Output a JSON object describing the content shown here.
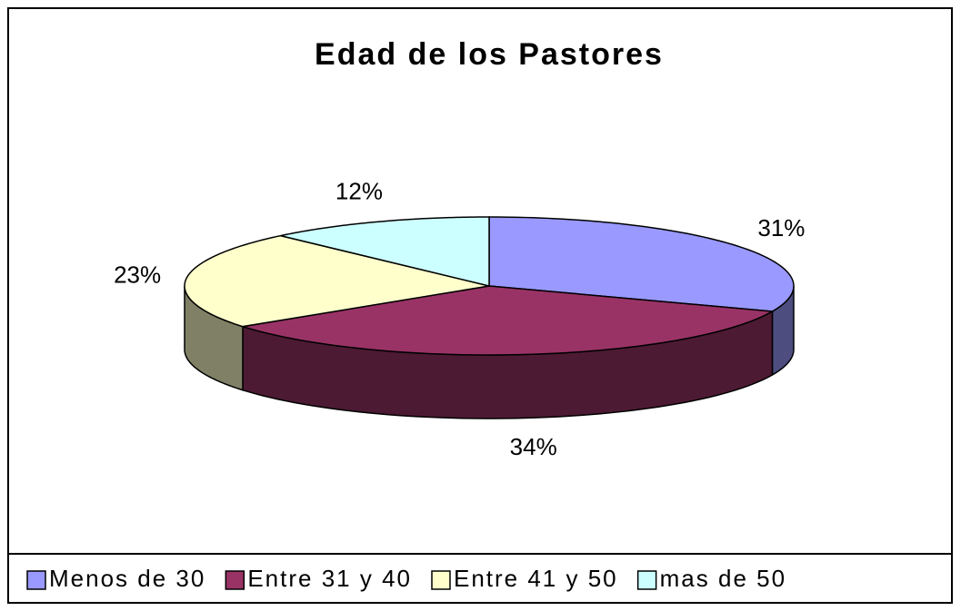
{
  "chart_data": {
    "type": "pie3d",
    "title": "Edad de los Pastores",
    "categories": [
      "Menos de 30",
      "Entre 31 y 40",
      "Entre 41 y 50",
      "mas de 50"
    ],
    "values": [
      31,
      34,
      23,
      12
    ],
    "value_labels": [
      "31%",
      "34%",
      "23%",
      "12%"
    ],
    "colors": [
      "#9999ff",
      "#993366",
      "#ffffcc",
      "#ccffff"
    ],
    "legend": "bottom"
  }
}
